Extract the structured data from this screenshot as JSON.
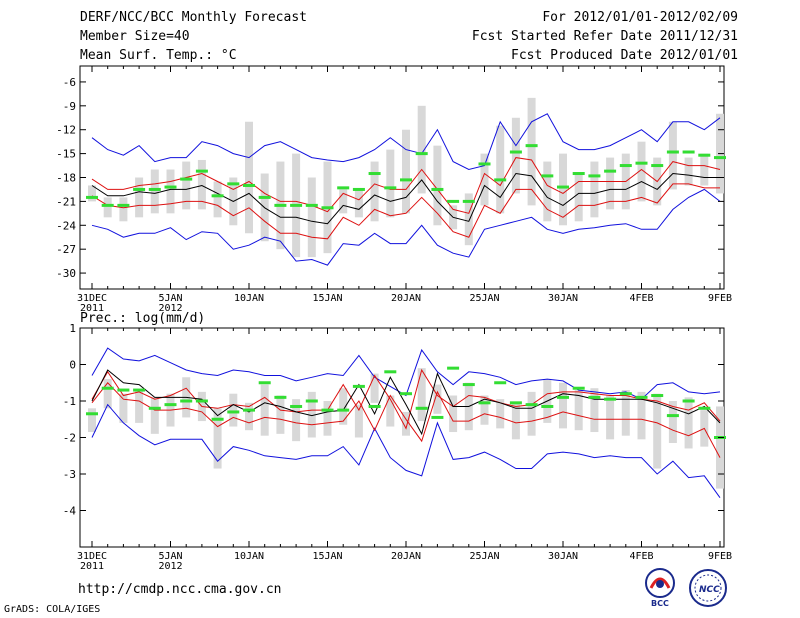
{
  "header": {
    "title": "DERF/NCC/BCC Monthly Forecast",
    "member_size": "Member Size=40",
    "variable_1": "Mean Surf. Temp.: °C",
    "forecast_period": "For 2012/01/01-2012/02/09",
    "start_date": "Fcst Started Refer Date 2011/12/31",
    "produced_date": "Fcst Produced Date 2012/01/01"
  },
  "footer": {
    "url": "http://cmdp.ncc.cma.gov.cn",
    "credit": "GrADS: COLA/IGES",
    "logo_left_text": "BCC",
    "logo_right_text": "NCC"
  },
  "colors": {
    "envelope": "#1111dd",
    "quartile": "#dd1111",
    "median": "#000000",
    "box": "#d8d8d8",
    "mean_marker": "#33dd33"
  },
  "chart_data": [
    {
      "type": "box-ensemble",
      "title": "Mean Surf. Temp.: °C",
      "days": 41,
      "xlabels": [
        {
          "day": 0,
          "text": "31DEC",
          "sub": "2011"
        },
        {
          "day": 5,
          "text": "5JAN",
          "sub": "2012"
        },
        {
          "day": 10,
          "text": "10JAN",
          "sub": ""
        },
        {
          "day": 15,
          "text": "15JAN",
          "sub": ""
        },
        {
          "day": 20,
          "text": "20JAN",
          "sub": ""
        },
        {
          "day": 25,
          "text": "25JAN",
          "sub": ""
        },
        {
          "day": 30,
          "text": "30JAN",
          "sub": ""
        },
        {
          "day": 35,
          "text": "4FEB",
          "sub": ""
        },
        {
          "day": 40,
          "text": "9FEB",
          "sub": ""
        }
      ],
      "ylim": [
        -32,
        -4
      ],
      "yticks": [
        -6,
        -9,
        -12,
        -15,
        -18,
        -21,
        -24,
        -27,
        -30
      ],
      "max": [
        -13,
        -14.5,
        -15.2,
        -14,
        -16,
        -15.5,
        -15.5,
        -13.5,
        -14,
        -15,
        -15.5,
        -14,
        -13.5,
        -14.5,
        -15.5,
        -15.8,
        -16,
        -15.5,
        -14.5,
        -13,
        -14.5,
        -15,
        -12,
        -16,
        -17,
        -16.5,
        -11,
        -14,
        -11,
        -10,
        -13.5,
        -14.5,
        -14.5,
        -14,
        -13,
        -12,
        -13.5,
        -11,
        -11,
        -12,
        -10.5
      ],
      "q75": [
        -18.2,
        -19.5,
        -19.5,
        -19,
        -18.8,
        -18.5,
        -18,
        -17.5,
        -18.5,
        -19.5,
        -18.5,
        -20,
        -21,
        -21,
        -21.5,
        -22.3,
        -20,
        -20.8,
        -18.8,
        -19.5,
        -19.5,
        -17,
        -19.5,
        -22,
        -22.5,
        -17.5,
        -19,
        -15.5,
        -15.8,
        -19,
        -20,
        -18.5,
        -18.5,
        -18.5,
        -18.5,
        -17,
        -18.5,
        -16,
        -16.5,
        -16.5,
        -17
      ],
      "median": [
        -19,
        -20.3,
        -20.3,
        -19.8,
        -20,
        -19.5,
        -19.5,
        -19,
        -20,
        -21,
        -20,
        -21.8,
        -23,
        -23,
        -23.5,
        -23.8,
        -21.5,
        -22,
        -20.2,
        -21,
        -20.5,
        -18.3,
        -21,
        -23,
        -23.5,
        -19,
        -20.5,
        -17.5,
        -17.8,
        -20.5,
        -21.5,
        -20,
        -20,
        -19.5,
        -19.5,
        -18.5,
        -19.5,
        -17.5,
        -17.7,
        -18,
        -18
      ],
      "q25": [
        -20.3,
        -21.5,
        -21.8,
        -21.5,
        -21.5,
        -21.3,
        -21,
        -21,
        -21.5,
        -22.8,
        -21.8,
        -23.5,
        -25,
        -25,
        -25.5,
        -25.7,
        -23,
        -24,
        -22,
        -22.8,
        -22.5,
        -20.5,
        -22.5,
        -24.8,
        -25.5,
        -21.5,
        -22.5,
        -19.5,
        -19.5,
        -22,
        -23,
        -21.5,
        -21.5,
        -21,
        -21,
        -20.5,
        -21.2,
        -18.8,
        -18.8,
        -19.3,
        -19.3
      ],
      "min": [
        -24,
        -24.5,
        -25.5,
        -25,
        -25,
        -24.3,
        -25.8,
        -24.8,
        -25,
        -27,
        -26.5,
        -25.5,
        -26,
        -28.5,
        -28.3,
        -29,
        -26.3,
        -26.5,
        -25,
        -26.3,
        -26.3,
        -24,
        -26.5,
        -27.5,
        -28,
        -24.5,
        -24,
        -23.5,
        -23,
        -24.5,
        -25,
        -24.5,
        -24.3,
        -24,
        -23.8,
        -24.5,
        -24.5,
        -22,
        -20.5,
        -19.5,
        -21
      ],
      "box_top": [
        -19,
        -20.5,
        -20.5,
        -18,
        -17,
        -17,
        -16,
        -15.8,
        -18.5,
        -18,
        -11,
        -17.5,
        -16,
        -15,
        -18,
        -16,
        -19.5,
        -19.5,
        -16,
        -14.5,
        -12,
        -9,
        -14,
        -21.5,
        -20,
        -15,
        -11.5,
        -10.5,
        -8,
        -16,
        -15,
        -17.5,
        -16,
        -15.5,
        -15,
        -13.5,
        -15.5,
        -11,
        -15.5,
        -15,
        -10
      ],
      "box_bottom": [
        -21,
        -23,
        -23.5,
        -23,
        -22.5,
        -22.5,
        -22,
        -22,
        -23,
        -24,
        -25,
        -26,
        -27,
        -28,
        -28,
        -27.5,
        -22.5,
        -23,
        -23.5,
        -23,
        -22.5,
        -20,
        -24,
        -24.5,
        -26.5,
        -21.5,
        -22.5,
        -20,
        -21.5,
        -23.5,
        -24,
        -23.5,
        -23,
        -22,
        -22,
        -21,
        -21.5,
        -19.5,
        -19,
        -19,
        -20
      ],
      "mean": [
        -20.5,
        -21.5,
        -21.5,
        -19.5,
        -19.5,
        -19.2,
        -18.2,
        -17.2,
        -20.3,
        -18.8,
        -19,
        -20.5,
        -21.5,
        -21.5,
        -21.5,
        -21.8,
        -19.3,
        -19.5,
        -17.5,
        -19.3,
        -18.3,
        -15,
        -19.5,
        -21,
        -21,
        -16.3,
        -18.3,
        -14.8,
        -14,
        -17.8,
        -19.2,
        -17.5,
        -17.8,
        -17.2,
        -16.5,
        -16.2,
        -16.5,
        -14.8,
        -14.8,
        -15.2,
        -15.5
      ]
    },
    {
      "type": "box-ensemble",
      "title": "Prec.: log(mm/d)",
      "days": 41,
      "xlabels": [
        {
          "day": 0,
          "text": "31DEC",
          "sub": "2011"
        },
        {
          "day": 5,
          "text": "5JAN",
          "sub": "2012"
        },
        {
          "day": 10,
          "text": "10JAN",
          "sub": ""
        },
        {
          "day": 15,
          "text": "15JAN",
          "sub": ""
        },
        {
          "day": 20,
          "text": "20JAN",
          "sub": ""
        },
        {
          "day": 25,
          "text": "25JAN",
          "sub": ""
        },
        {
          "day": 30,
          "text": "30JAN",
          "sub": ""
        },
        {
          "day": 35,
          "text": "4FEB",
          "sub": ""
        },
        {
          "day": 40,
          "text": "9FEB",
          "sub": ""
        }
      ],
      "ylim": [
        -5,
        1
      ],
      "yticks": [
        1,
        0,
        -1,
        -2,
        -3,
        -4
      ],
      "max": [
        -0.3,
        0.45,
        0.15,
        0.1,
        0.25,
        0.05,
        -0.15,
        -0.25,
        -0.3,
        -0.15,
        -0.2,
        -0.3,
        -0.3,
        -0.45,
        -0.35,
        -0.25,
        -0.3,
        0.25,
        -0.35,
        -0.6,
        -0.85,
        0.4,
        -0.2,
        -0.55,
        -0.2,
        -0.25,
        -0.35,
        -0.55,
        -0.45,
        -0.4,
        -0.45,
        -0.7,
        -0.75,
        -0.8,
        -0.75,
        -0.95,
        -0.55,
        -0.5,
        -0.75,
        -0.8,
        -0.75
      ],
      "q75": [
        -0.95,
        -0.2,
        -0.85,
        -0.75,
        -0.95,
        -0.85,
        -0.65,
        -1.15,
        -1.2,
        -1.1,
        -1.15,
        -0.9,
        -1.25,
        -1.3,
        -1.25,
        -1.25,
        -0.55,
        -1.25,
        -0.3,
        -0.95,
        -1.75,
        -0.15,
        -0.85,
        -1.15,
        -0.85,
        -0.9,
        -1.05,
        -1.15,
        -1.1,
        -0.8,
        -0.75,
        -0.75,
        -0.8,
        -0.85,
        -0.85,
        -0.95,
        -1.0,
        -1.15,
        -1.25,
        -1.05,
        -1.55
      ],
      "median": [
        -1.0,
        -0.15,
        -0.5,
        -0.55,
        -0.9,
        -0.9,
        -0.9,
        -0.95,
        -1.4,
        -1.1,
        -1.3,
        -1.05,
        -1.15,
        -1.3,
        -1.4,
        -1.3,
        -1.25,
        -0.55,
        -1.35,
        -0.35,
        -1.1,
        -1.9,
        -0.25,
        -1.15,
        -1.15,
        -0.95,
        -1.05,
        -1.2,
        -1.2,
        -1.0,
        -0.8,
        -0.85,
        -0.95,
        -0.95,
        -0.95,
        -0.95,
        -1.05,
        -1.2,
        -1.35,
        -1.15,
        -1.6
      ],
      "q25": [
        -1.05,
        -0.5,
        -0.95,
        -1.0,
        -1.25,
        -1.25,
        -1.2,
        -1.3,
        -1.7,
        -1.45,
        -1.6,
        -1.45,
        -1.5,
        -1.6,
        -1.65,
        -1.6,
        -1.55,
        -1.0,
        -1.8,
        -0.85,
        -1.5,
        -2.1,
        -0.75,
        -1.55,
        -1.55,
        -1.35,
        -1.45,
        -1.6,
        -1.55,
        -1.45,
        -1.3,
        -1.4,
        -1.5,
        -1.5,
        -1.5,
        -1.5,
        -1.6,
        -1.8,
        -1.95,
        -1.75,
        -2.55
      ],
      "min": [
        -2.0,
        -1.1,
        -1.6,
        -1.95,
        -2.2,
        -2.05,
        -2.05,
        -2.05,
        -2.65,
        -2.25,
        -2.35,
        -2.5,
        -2.55,
        -2.6,
        -2.5,
        -2.5,
        -2.25,
        -2.75,
        -1.75,
        -2.55,
        -2.9,
        -3.05,
        -1.6,
        -2.6,
        -2.55,
        -2.4,
        -2.6,
        -2.85,
        -2.85,
        -2.45,
        -2.4,
        -2.45,
        -2.55,
        -2.5,
        -2.55,
        -2.55,
        -3.0,
        -2.65,
        -3.1,
        -3.05,
        -3.65
      ],
      "box_top": [
        -1.2,
        -0.4,
        -0.8,
        -0.7,
        -0.9,
        -0.8,
        -0.35,
        -0.75,
        -1.2,
        -0.8,
        -1.05,
        -0.55,
        -0.85,
        -0.95,
        -0.75,
        -1.0,
        -0.65,
        -1.1,
        -0.25,
        -0.85,
        -1.3,
        -0.1,
        -0.55,
        -0.85,
        -0.5,
        -0.85,
        -0.95,
        -1.05,
        -0.75,
        -0.4,
        -0.5,
        -0.7,
        -0.65,
        -0.85,
        -0.7,
        -0.75,
        -0.8,
        -1.0,
        -0.9,
        -1.25,
        -1.15
      ],
      "box_bottom": [
        -1.85,
        -1.2,
        -1.6,
        -1.6,
        -1.9,
        -1.7,
        -1.45,
        -1.55,
        -2.85,
        -1.7,
        -1.8,
        -1.95,
        -1.9,
        -2.1,
        -2.0,
        -1.95,
        -1.65,
        -2.0,
        -1.05,
        -1.7,
        -1.95,
        -1.55,
        -1.35,
        -1.85,
        -1.8,
        -1.65,
        -1.75,
        -2.05,
        -1.95,
        -1.6,
        -1.75,
        -1.8,
        -1.85,
        -2.05,
        -1.95,
        -2.05,
        -2.85,
        -2.15,
        -2.3,
        -2.25,
        -3.4
      ],
      "mean": [
        -1.35,
        -0.65,
        -0.7,
        -0.7,
        -1.2,
        -1.1,
        -1.0,
        -1.0,
        -1.5,
        -1.3,
        -1.25,
        -0.5,
        -0.9,
        -1.15,
        -1.0,
        -1.25,
        -1.25,
        -0.6,
        -1.15,
        -0.2,
        -0.8,
        -1.2,
        -1.45,
        -0.1,
        -0.55,
        -1.05,
        -0.5,
        -1.05,
        -1.1,
        -1.15,
        -0.9,
        -0.65,
        -0.9,
        -0.95,
        -0.8,
        -0.9,
        -0.85,
        -1.4,
        -1.0,
        -1.2,
        -2.0
      ]
    }
  ]
}
